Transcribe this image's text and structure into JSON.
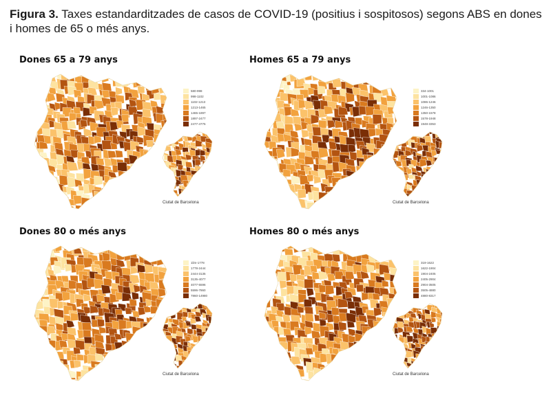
{
  "caption": {
    "label": "Figura 3.",
    "text": "Taxes estandarditzades de casos de COVID-19 (positius i sospitosos) segons ABS en dones i homes de 65 o més anys."
  },
  "panels": [
    {
      "title": "Dones 65 a 79 anys",
      "inset_label": "Ciutat de Barcelona",
      "legend": [
        "580-998",
        "998-1102",
        "1102-1213",
        "1213-1465",
        "1465-1897",
        "1897-2477",
        "2477-4775"
      ]
    },
    {
      "title": "Homes 65 a 79 anys",
      "inset_label": "Ciutat de Barcelona",
      "legend": [
        "334-1001",
        "1001-1086",
        "1086-1246",
        "1246-1350",
        "1350-1578",
        "1578-1948",
        "1948-3353"
      ]
    },
    {
      "title": "Dones 80 o més anys",
      "inset_label": "Ciutat de Barcelona",
      "legend": [
        "1lim-1778",
        "1778-2444",
        "2444-3135",
        "3135-4077",
        "4077-5596",
        "5596-7860",
        "7860-14980"
      ]
    },
    {
      "title": "Homes 80 o més anys",
      "inset_label": "Ciutat de Barcelona",
      "legend": [
        "319-1622",
        "1622-1904",
        "1904-2405",
        "2405-2904",
        "2904-3505",
        "3505-4880",
        "4880-8317"
      ]
    }
  ],
  "colors": {
    "scale": [
      "#fdf3c6",
      "#fde3a0",
      "#fbc26a",
      "#f2a23e",
      "#d97a1f",
      "#b35411",
      "#7a2e06"
    ],
    "background": "#ffffff"
  }
}
